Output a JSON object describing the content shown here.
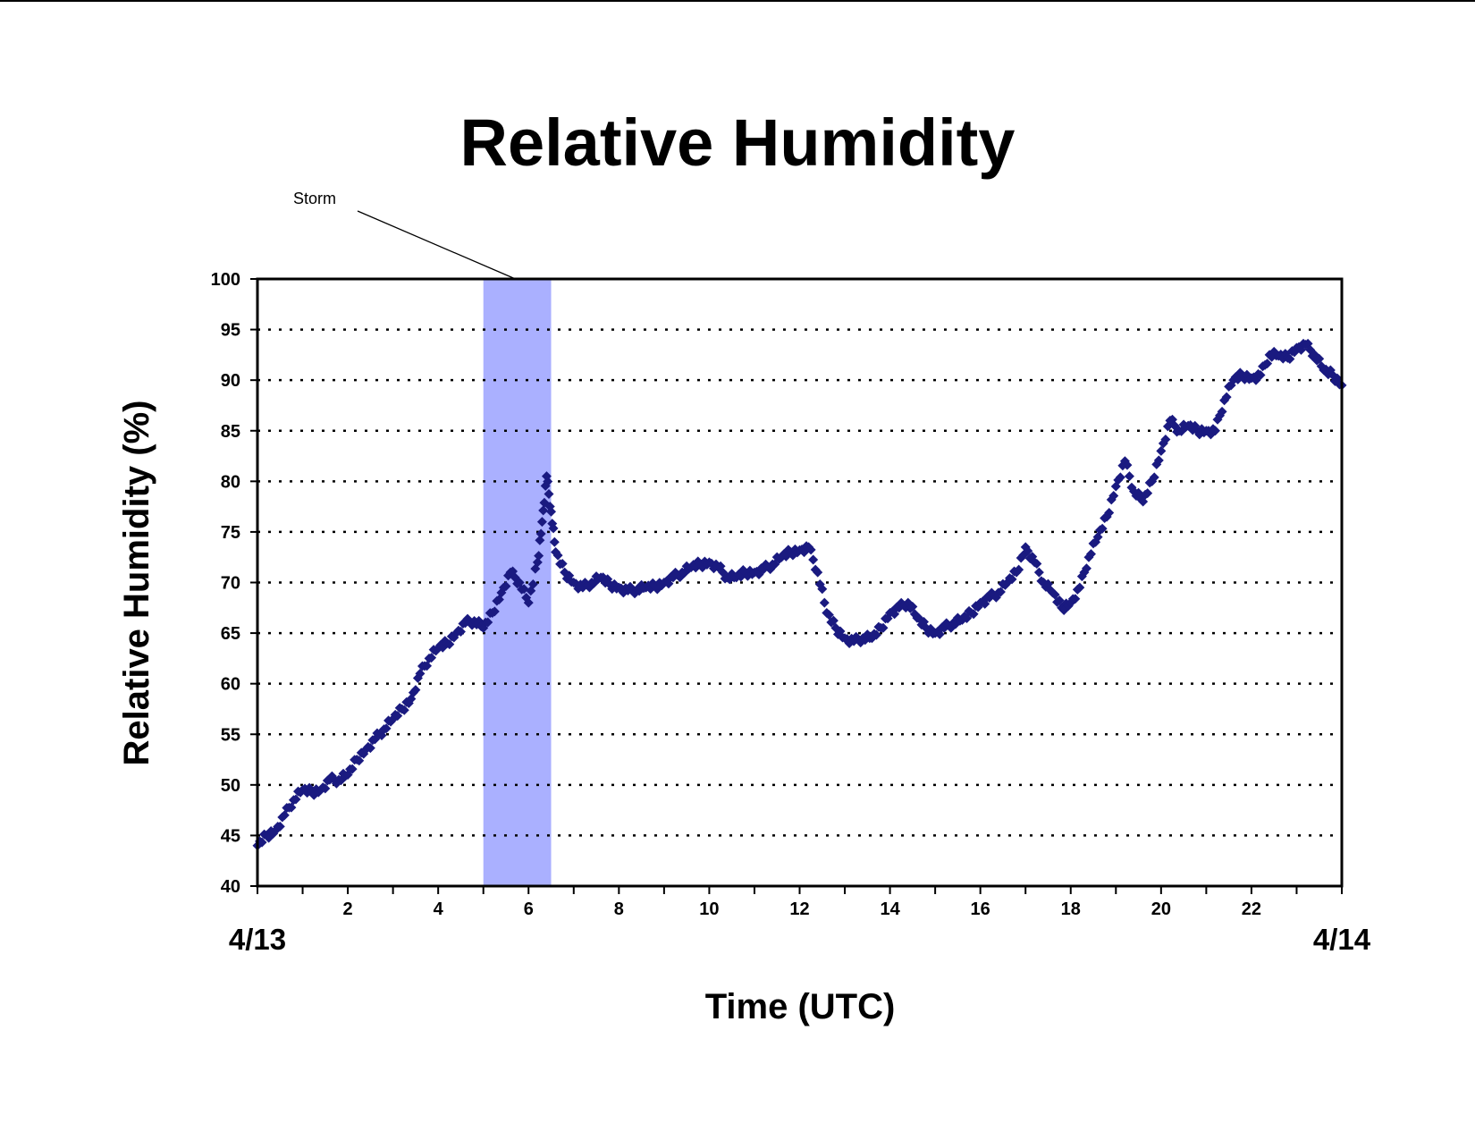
{
  "chart_data": {
    "type": "scatter",
    "title": "Relative Humidity",
    "xlabel": "Time (UTC)",
    "ylabel": "Relative Humidity (%)",
    "xlim": [
      0,
      24
    ],
    "ylim": [
      40,
      100
    ],
    "x_tick_labels": [
      "2",
      "4",
      "6",
      "8",
      "10",
      "12",
      "14",
      "16",
      "18",
      "20",
      "22"
    ],
    "x_tick_values": [
      2,
      4,
      6,
      8,
      10,
      12,
      14,
      16,
      18,
      20,
      22
    ],
    "y_ticks": [
      40,
      45,
      50,
      55,
      60,
      65,
      70,
      75,
      80,
      85,
      90,
      95,
      100
    ],
    "date_labels": {
      "start": "4/13",
      "end": "4/14"
    },
    "grid": "horizontal dotted",
    "marker_color": "#1A1A80",
    "highlight": {
      "label": "Storm",
      "x_start": 5.0,
      "x_end": 6.5,
      "color": "#AAB0FF"
    },
    "series": [
      {
        "x": [
          0.0,
          0.2,
          0.4,
          0.6,
          0.8,
          1.0,
          1.2,
          1.4,
          1.6,
          1.8,
          2.0,
          2.2,
          2.4,
          2.6,
          2.8,
          3.0,
          3.2,
          3.4,
          3.6,
          3.8,
          4.0,
          4.2,
          4.4,
          4.6,
          4.8,
          5.0,
          5.2,
          5.4,
          5.6,
          5.8,
          6.0,
          6.2,
          6.3,
          6.4,
          6.5,
          6.6,
          6.8,
          7.0,
          7.2,
          7.4,
          7.6,
          7.8,
          8.0,
          8.2,
          8.4,
          8.6,
          8.8,
          9.0,
          9.2,
          9.4,
          9.6,
          9.8,
          10.0,
          10.2,
          10.4,
          10.6,
          10.8,
          11.0,
          11.2,
          11.4,
          11.6,
          11.8,
          12.0,
          12.2,
          12.4,
          12.6,
          12.8,
          13.0,
          13.2,
          13.4,
          13.6,
          13.8,
          14.0,
          14.2,
          14.4,
          14.6,
          14.8,
          15.0,
          15.2,
          15.4,
          15.6,
          15.8,
          16.0,
          16.2,
          16.4,
          16.6,
          16.8,
          17.0,
          17.2,
          17.4,
          17.6,
          17.8,
          18.0,
          18.2,
          18.4,
          18.6,
          18.8,
          19.0,
          19.2,
          19.4,
          19.6,
          19.8,
          20.0,
          20.2,
          20.4,
          20.6,
          20.8,
          21.0,
          21.2,
          21.4,
          21.6,
          21.8,
          22.0,
          22.2,
          22.4,
          22.6,
          22.8,
          23.0,
          23.2,
          23.4,
          23.6,
          23.8,
          24.0
        ],
        "y": [
          44,
          45,
          45.5,
          47,
          48.5,
          49.5,
          49.3,
          49.5,
          50.5,
          50.5,
          51,
          52.5,
          53.5,
          54.5,
          55.5,
          56.5,
          57.5,
          58.5,
          61,
          62.5,
          63.5,
          64,
          65,
          66,
          66.2,
          65.5,
          67,
          69,
          71,
          70,
          68,
          72,
          76,
          80.5,
          77,
          73,
          71,
          70,
          69.5,
          70,
          70.5,
          69.8,
          69.5,
          69.2,
          69.3,
          69.5,
          69.6,
          70,
          70.5,
          71,
          71.5,
          71.8,
          72,
          71.5,
          70.5,
          70.5,
          71,
          71,
          71.3,
          71.8,
          72.5,
          73,
          73.2,
          73.5,
          71,
          67,
          65.5,
          64.5,
          64.2,
          64.5,
          64.5,
          65.5,
          67,
          67.5,
          68,
          66.5,
          65.5,
          65,
          65.5,
          66,
          66.3,
          67,
          68,
          68.5,
          69,
          70,
          71,
          73.5,
          72,
          70,
          69,
          67.5,
          68,
          69.5,
          72.5,
          74.5,
          76.5,
          79.5,
          82,
          79,
          78,
          80,
          83,
          86,
          85,
          85.5,
          85,
          85,
          85,
          88,
          90,
          90.5,
          90.2,
          90.5,
          92.5,
          92.4,
          92.2,
          93.2,
          93.5,
          92.5,
          91,
          90.5,
          89.5
        ]
      }
    ]
  }
}
